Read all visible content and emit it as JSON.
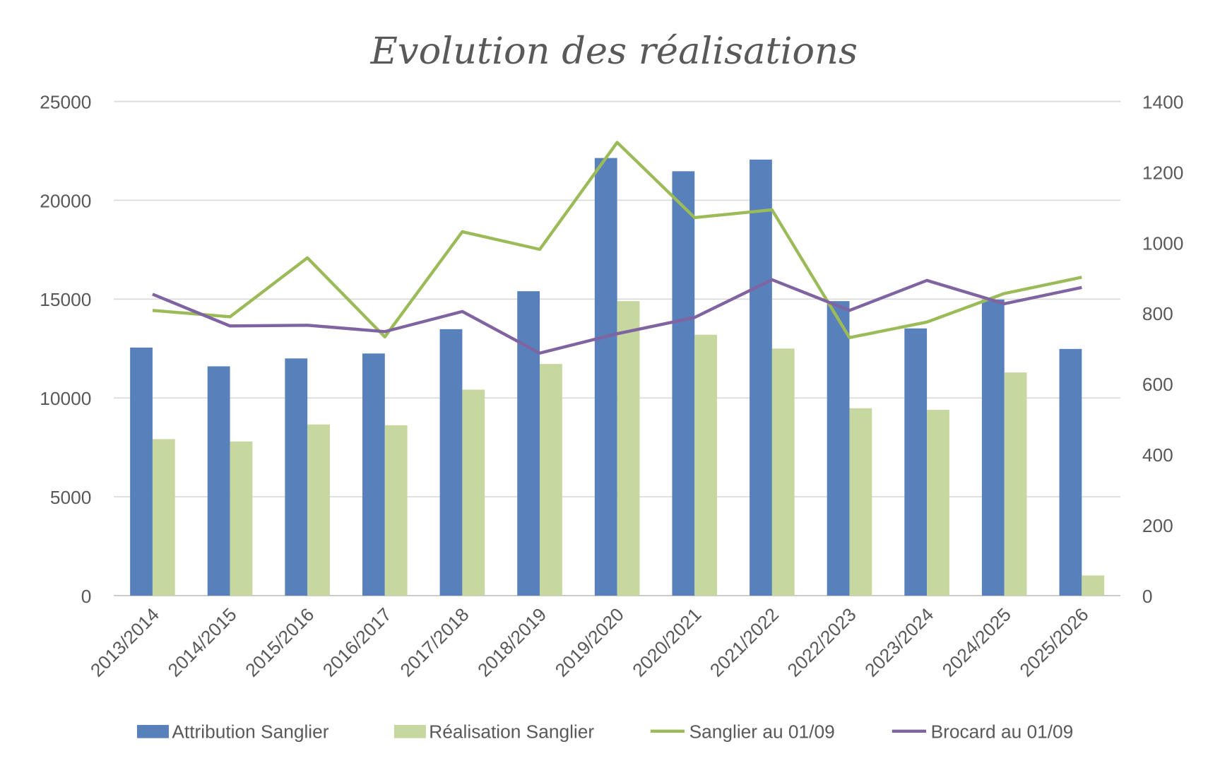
{
  "chart_data": {
    "type": "bar",
    "title": "Evolution des réalisations",
    "categories": [
      "2013/2014",
      "2014/2015",
      "2015/2016",
      "2016/2017",
      "2017/2018",
      "2018/2019",
      "2019/2020",
      "2020/2021",
      "2021/2022",
      "2022/2023",
      "2023/2024",
      "2024/2025",
      "2025/2026"
    ],
    "y_left": {
      "range": [
        0,
        25000
      ],
      "ticks": [
        "0",
        "5000",
        "10000",
        "15000",
        "20000",
        "25000"
      ]
    },
    "y_right": {
      "range": [
        0,
        1400
      ],
      "ticks": [
        "0",
        "200",
        "400",
        "600",
        "800",
        "1000",
        "1200",
        "1400"
      ]
    },
    "grid": true,
    "legend_placement": "bottom",
    "series": [
      {
        "name": "Attribution Sanglier",
        "kind": "bar",
        "axis": "left",
        "color": "#5880BA",
        "values": [
          12550,
          11600,
          12000,
          12250,
          13480,
          15400,
          22140,
          21470,
          22060,
          14900,
          13520,
          14980,
          12480
        ]
      },
      {
        "name": "Réalisation Sanglier",
        "kind": "bar",
        "axis": "left",
        "color": "#C7D7A0",
        "values": [
          7920,
          7800,
          8660,
          8620,
          10420,
          11720,
          14900,
          13200,
          12500,
          9480,
          9400,
          11290,
          1020
        ]
      },
      {
        "name": "Sanglier au 01/09",
        "kind": "line",
        "axis": "right",
        "color": "#9BBB59",
        "values": [
          808,
          790,
          957,
          733,
          1031,
          981,
          1284,
          1071,
          1093,
          731,
          775,
          856,
          902
        ]
      },
      {
        "name": "Brocard au 01/09",
        "kind": "line",
        "axis": "right",
        "color": "#8064A2",
        "values": [
          854,
          764,
          766,
          748,
          805,
          687,
          742,
          788,
          895,
          808,
          893,
          827,
          873
        ]
      }
    ]
  }
}
